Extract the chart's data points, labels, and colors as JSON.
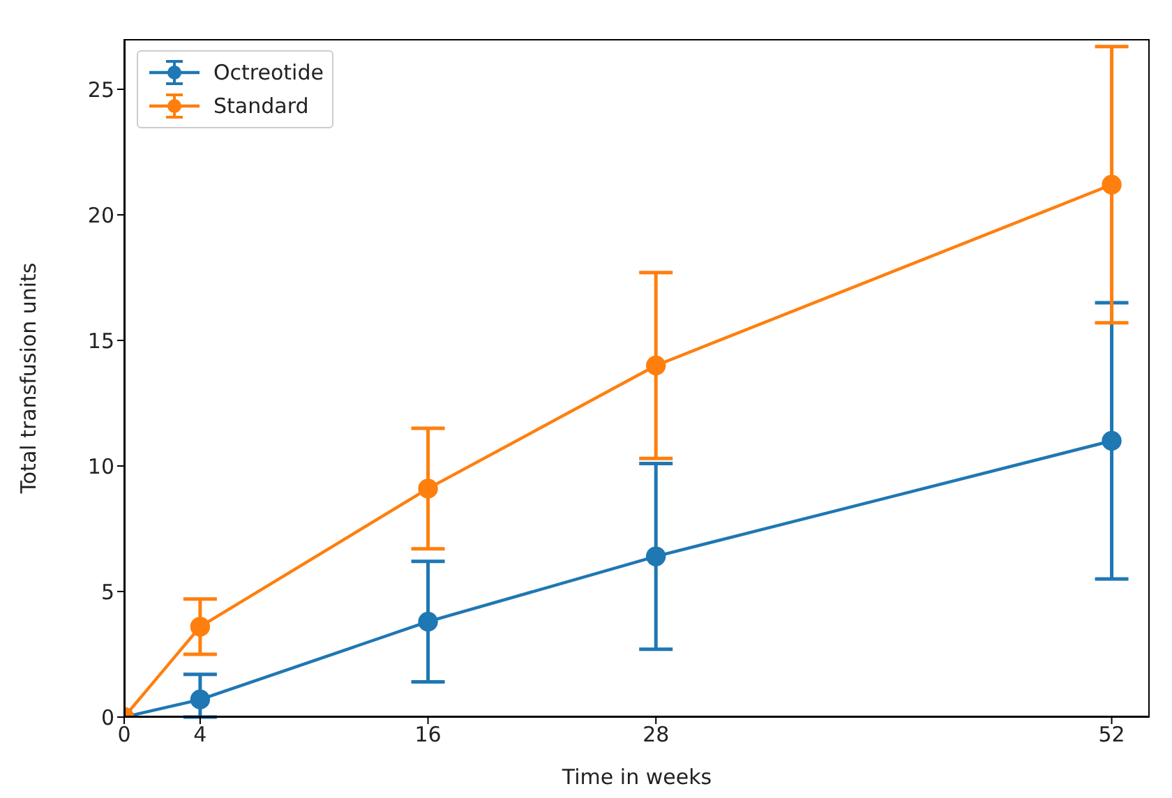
{
  "chart_data": {
    "type": "line",
    "xlabel": "Time in weeks",
    "ylabel": "Total transfusion units",
    "x": [
      0,
      4,
      16,
      28,
      52
    ],
    "series": [
      {
        "name": "Octreotide",
        "color": "#1f77b4",
        "values": [
          0,
          0.7,
          3.8,
          6.4,
          11.0
        ],
        "errors": [
          null,
          [
            0,
            1.7
          ],
          2.4,
          3.7,
          5.5
        ]
      },
      {
        "name": "Standard",
        "color": "#ff7f0e",
        "values": [
          0,
          3.6,
          9.1,
          14.0,
          21.2
        ],
        "errors": [
          null,
          1.1,
          2.4,
          3.7,
          5.5
        ]
      }
    ],
    "xlim": [
      0,
      54
    ],
    "xticks": [
      0,
      4,
      16,
      28,
      52
    ],
    "ylim": [
      0,
      27
    ],
    "yticks": [
      0,
      5,
      10,
      15,
      20,
      25
    ],
    "grid": false,
    "legend": "top left",
    "marker": "circle",
    "line_style": "solid"
  }
}
